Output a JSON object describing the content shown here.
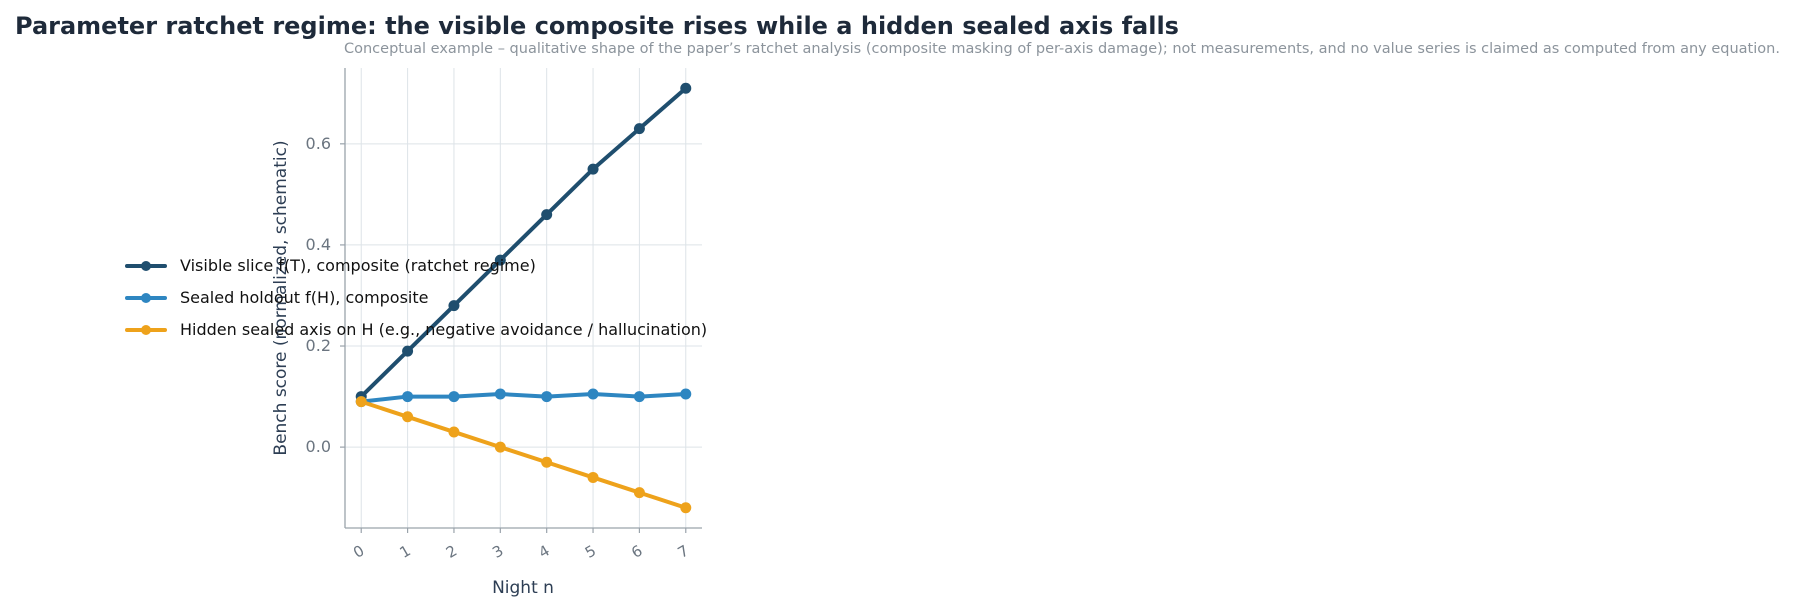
{
  "chart_data": {
    "type": "line",
    "title": "Parameter ratchet regime: the visible composite rises while a hidden sealed axis falls",
    "subtitle": "Conceptual example – qualitative shape of the paper’s ratchet analysis (composite masking of per-axis damage); not measurements, and no value series is claimed as computed from any equation.",
    "xlabel": "Night n",
    "ylabel": "Bench score (normalized, schematic)",
    "x": [
      0,
      1,
      2,
      3,
      4,
      5,
      6,
      7
    ],
    "x_ticks": [
      "0",
      "1",
      "2",
      "3",
      "4",
      "5",
      "6",
      "7"
    ],
    "y_ticks": [
      "0.0",
      "0.2",
      "0.4",
      "0.6"
    ],
    "xlim": [
      -0.35,
      7.35
    ],
    "ylim": [
      -0.16,
      0.75
    ],
    "grid": true,
    "legend_position": "left",
    "series": [
      {
        "name": "Visible slice f(T), composite (ratchet regime)",
        "color": "#1f4e6e",
        "values": [
          0.1,
          0.19,
          0.28,
          0.37,
          0.46,
          0.55,
          0.63,
          0.71
        ]
      },
      {
        "name": "Sealed holdout f(H), composite",
        "color": "#2e86c1",
        "values": [
          0.09,
          0.1,
          0.1,
          0.105,
          0.1,
          0.105,
          0.1,
          0.105
        ]
      },
      {
        "name": "Hidden sealed axis on H (e.g., negative avoidance / hallucination)",
        "color": "#eea21b",
        "values": [
          0.09,
          0.06,
          0.03,
          0.0,
          -0.03,
          -0.06,
          -0.09,
          -0.12
        ]
      }
    ]
  }
}
